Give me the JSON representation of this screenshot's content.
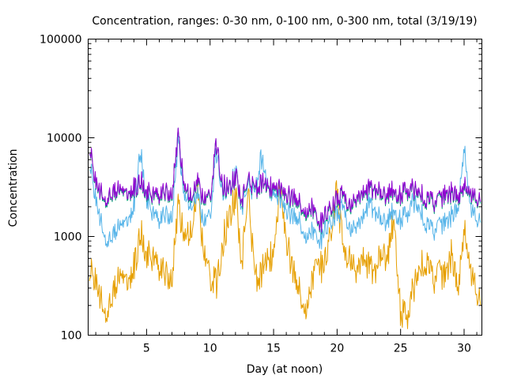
{
  "chart_data": {
    "type": "line",
    "title": "Concentration, ranges: 0-30 nm, 0-100 nm, 0-300 nm, total (3/19/19)",
    "xlabel": "Day (at noon)",
    "ylabel": "Concentration",
    "xlim": [
      0.4,
      31.4
    ],
    "ylim": [
      100,
      100000
    ],
    "yscale": "log",
    "grid": false,
    "legend": "none",
    "x_ticks": [
      5,
      10,
      15,
      20,
      25,
      30
    ],
    "x_tick_labels": [
      "5",
      "10",
      "15",
      "20",
      "25",
      "30"
    ],
    "y_ticks": [
      100,
      1000,
      10000,
      100000
    ],
    "y_tick_labels": [
      "100",
      "1000",
      "10000",
      "100000"
    ],
    "series": [
      {
        "color": "#e69f00",
        "x": [
          0.5,
          1,
          1.5,
          2,
          2.5,
          3,
          3.5,
          4,
          4.5,
          5,
          5.5,
          6,
          6.5,
          7,
          7.5,
          8,
          8.5,
          9,
          9.5,
          10,
          10.5,
          11,
          11.5,
          12,
          12.5,
          13,
          13.5,
          14,
          14.5,
          15,
          15.5,
          16,
          16.5,
          17,
          17.5,
          18,
          18.5,
          19,
          19.5,
          20,
          20.5,
          21,
          21.5,
          22,
          22.5,
          23,
          23.5,
          24,
          24.5,
          25,
          25.5,
          26,
          26.5,
          27,
          27.5,
          28,
          28.5,
          29,
          29.5,
          30,
          30.5,
          31,
          31.3
        ],
        "values": [
          500,
          320,
          220,
          170,
          300,
          450,
          400,
          480,
          1100,
          700,
          550,
          500,
          420,
          350,
          2200,
          900,
          1200,
          2800,
          700,
          380,
          320,
          900,
          1500,
          2600,
          550,
          3000,
          380,
          420,
          550,
          700,
          3200,
          900,
          450,
          300,
          180,
          350,
          500,
          480,
          1200,
          2800,
          700,
          650,
          450,
          600,
          500,
          420,
          700,
          600,
          1600,
          170,
          140,
          300,
          450,
          600,
          350,
          450,
          400,
          650,
          300,
          1200,
          400,
          300,
          250
        ]
      },
      {
        "color": "#56b4e9",
        "x": [
          0.5,
          1,
          1.5,
          2,
          2.5,
          3,
          3.5,
          4,
          4.5,
          5,
          5.5,
          6,
          6.5,
          7,
          7.5,
          8,
          8.5,
          9,
          9.5,
          10,
          10.5,
          11,
          11.5,
          12,
          12.5,
          13,
          13.5,
          14,
          14.5,
          15,
          15.5,
          16,
          16.5,
          17,
          17.5,
          18,
          18.5,
          19,
          19.5,
          20,
          20.5,
          21,
          21.5,
          22,
          22.5,
          23,
          23.5,
          24,
          24.5,
          25,
          25.5,
          26,
          26.5,
          27,
          27.5,
          28,
          28.5,
          29,
          29.5,
          30,
          30.5,
          31,
          31.3
        ],
        "values": [
          6000,
          2200,
          1300,
          850,
          1100,
          1400,
          1600,
          2000,
          7500,
          2500,
          1600,
          1500,
          1700,
          1500,
          9500,
          2300,
          2200,
          2600,
          1400,
          1600,
          7000,
          3000,
          3000,
          4500,
          2000,
          3500,
          2500,
          6500,
          3200,
          2800,
          2500,
          1800,
          1600,
          1500,
          1000,
          1200,
          800,
          1100,
          1500,
          1600,
          2000,
          1200,
          1300,
          1500,
          2200,
          1700,
          1500,
          1400,
          1900,
          1500,
          1600,
          2300,
          1800,
          1400,
          1100,
          1300,
          1400,
          1600,
          1900,
          8000,
          1800,
          1600,
          1600
        ]
      },
      {
        "color": "#009e73",
        "x": [
          0.5,
          1,
          1.5,
          2,
          2.5,
          3,
          3.5,
          4,
          4.5,
          5,
          5.5,
          6,
          6.5,
          7,
          7.5,
          8,
          8.5,
          9,
          9.5,
          10,
          10.5,
          11,
          11.5,
          12,
          12.5,
          13,
          13.5,
          14,
          14.5,
          15,
          15.5,
          16,
          16.5,
          17,
          17.5,
          18,
          18.5,
          19,
          19.5,
          20,
          20.5,
          21,
          21.5,
          22,
          22.5,
          23,
          23.5,
          24,
          24.5,
          25,
          25.5,
          26,
          26.5,
          27,
          27.5,
          28,
          28.5,
          29,
          29.5,
          30,
          30.5,
          31,
          31.3
        ],
        "values": [
          8500,
          3200,
          2700,
          2300,
          2800,
          3100,
          2900,
          3000,
          3600,
          2900,
          2400,
          2600,
          2800,
          2500,
          11000,
          2800,
          2600,
          3500,
          2300,
          2400,
          8500,
          3300,
          2900,
          4000,
          2300,
          3800,
          2800,
          3500,
          3000,
          3200,
          3100,
          2500,
          2400,
          2200,
          1700,
          2000,
          1200,
          1500,
          2000,
          2200,
          2600,
          2000,
          2400,
          2600,
          3000,
          2800,
          2700,
          2500,
          2900,
          2600,
          2700,
          3000,
          2600,
          2400,
          2100,
          2300,
          2600,
          2700,
          2500,
          3200,
          2400,
          2500,
          2500
        ]
      },
      {
        "color": "#9400d3",
        "x": [
          0.5,
          1,
          1.5,
          2,
          2.5,
          3,
          3.5,
          4,
          4.5,
          5,
          5.5,
          6,
          6.5,
          7,
          7.5,
          8,
          8.5,
          9,
          9.5,
          10,
          10.5,
          11,
          11.5,
          12,
          12.5,
          13,
          13.5,
          14,
          14.5,
          15,
          15.5,
          16,
          16.5,
          17,
          17.5,
          18,
          18.5,
          19,
          19.5,
          20,
          20.5,
          21,
          21.5,
          22,
          22.5,
          23,
          23.5,
          24,
          24.5,
          25,
          25.5,
          26,
          26.5,
          27,
          27.5,
          28,
          28.5,
          29,
          29.5,
          30,
          30.5,
          31,
          31.3
        ],
        "values": [
          8600,
          3300,
          2800,
          2400,
          2900,
          3200,
          3000,
          3100,
          3700,
          3000,
          2500,
          2700,
          2900,
          2600,
          11100,
          2900,
          2700,
          3600,
          2400,
          2500,
          8600,
          3400,
          3000,
          4100,
          2400,
          3900,
          2900,
          3600,
          3100,
          3300,
          3200,
          2600,
          2500,
          2300,
          1800,
          2100,
          1250,
          1550,
          2100,
          2300,
          2700,
          2100,
          2500,
          2700,
          3100,
          2900,
          2800,
          2600,
          3000,
          2700,
          2800,
          3100,
          2700,
          2500,
          2200,
          2400,
          2700,
          2800,
          2600,
          3300,
          2500,
          2600,
          2600
        ]
      }
    ]
  }
}
